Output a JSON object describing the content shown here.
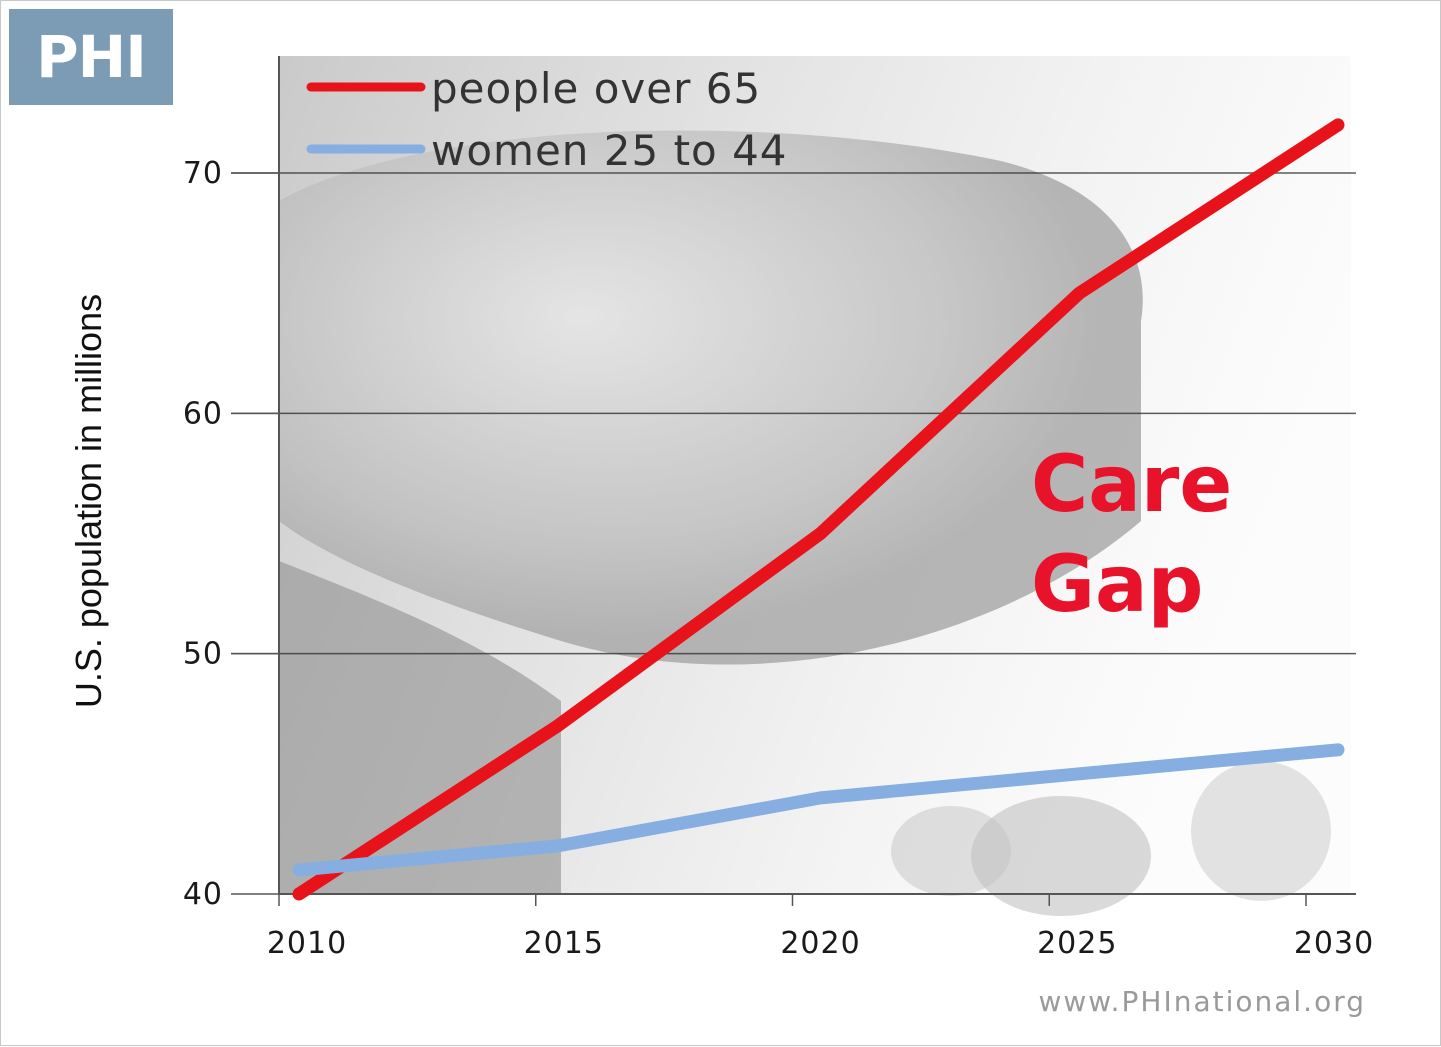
{
  "logo": {
    "text": "PHI"
  },
  "source": "www.PHInational.org",
  "colors": {
    "red_series": "#e8131a",
    "blue_series": "#87aee0",
    "annotation": "#e8132a",
    "gridline": "#333333",
    "logo_bg": "#7c9bb4"
  },
  "chart_data": {
    "type": "line",
    "title": "",
    "xlabel": "",
    "ylabel": "U.S. population in millions",
    "x": [
      2010,
      2015,
      2020,
      2025,
      2030
    ],
    "xlim": [
      2010,
      2030
    ],
    "ylim": [
      40,
      70
    ],
    "yticks": [
      40,
      50,
      60,
      70
    ],
    "xticks": [
      2010,
      2015,
      2020,
      2025,
      2030
    ],
    "grid": "horizontal",
    "legend_position": "top-left",
    "series": [
      {
        "name": "people over 65",
        "color": "#e8131a",
        "values": [
          40.0,
          47.0,
          55.0,
          65.0,
          72.0
        ]
      },
      {
        "name": "women 25 to 44",
        "color": "#87aee0",
        "values": [
          41.0,
          42.0,
          44.0,
          45.0,
          46.0
        ]
      }
    ],
    "annotations": [
      "Care",
      "Gap"
    ]
  }
}
